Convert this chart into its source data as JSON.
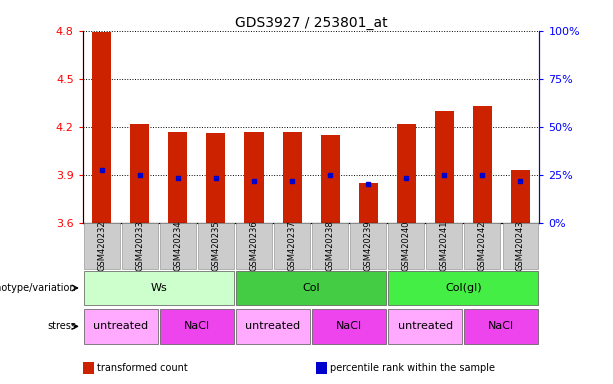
{
  "title": "GDS3927 / 253801_at",
  "samples": [
    "GSM420232",
    "GSM420233",
    "GSM420234",
    "GSM420235",
    "GSM420236",
    "GSM420237",
    "GSM420238",
    "GSM420239",
    "GSM420240",
    "GSM420241",
    "GSM420242",
    "GSM420243"
  ],
  "bar_tops": [
    4.79,
    4.22,
    4.17,
    4.16,
    4.17,
    4.17,
    4.15,
    3.85,
    4.22,
    4.3,
    4.33,
    3.93
  ],
  "bar_bottoms": [
    3.6,
    3.6,
    3.6,
    3.6,
    3.6,
    3.6,
    3.6,
    3.6,
    3.6,
    3.6,
    3.6,
    3.6
  ],
  "blue_dots": [
    3.93,
    3.9,
    3.88,
    3.88,
    3.86,
    3.86,
    3.9,
    3.84,
    3.88,
    3.9,
    3.9,
    3.86
  ],
  "ylim": [
    3.6,
    4.8
  ],
  "yticks": [
    3.6,
    3.9,
    4.2,
    4.5,
    4.8
  ],
  "right_yticks": [
    0,
    25,
    50,
    75,
    100
  ],
  "right_ytick_labels": [
    "0%",
    "25%",
    "50%",
    "75%",
    "100%"
  ],
  "bar_color": "#cc2200",
  "dot_color": "#0000cc",
  "genotype_groups": [
    {
      "label": "Ws",
      "start": 0,
      "end": 3,
      "color": "#ccffcc"
    },
    {
      "label": "Col",
      "start": 4,
      "end": 7,
      "color": "#44cc44"
    },
    {
      "label": "Col(gl)",
      "start": 8,
      "end": 11,
      "color": "#44ee44"
    }
  ],
  "stress_groups": [
    {
      "label": "untreated",
      "start": 0,
      "end": 1,
      "color": "#ffaaff"
    },
    {
      "label": "NaCl",
      "start": 2,
      "end": 3,
      "color": "#ee44ee"
    },
    {
      "label": "untreated",
      "start": 4,
      "end": 5,
      "color": "#ffaaff"
    },
    {
      "label": "NaCl",
      "start": 6,
      "end": 7,
      "color": "#ee44ee"
    },
    {
      "label": "untreated",
      "start": 8,
      "end": 9,
      "color": "#ffaaff"
    },
    {
      "label": "NaCl",
      "start": 10,
      "end": 11,
      "color": "#ee44ee"
    }
  ],
  "genotype_label": "genotype/variation",
  "stress_label": "stress",
  "legend_items": [
    {
      "color": "#cc2200",
      "label": "transformed count"
    },
    {
      "color": "#0000cc",
      "label": "percentile rank within the sample"
    }
  ],
  "title_fontsize": 10,
  "axis_fontsize": 8,
  "sample_fontsize": 6,
  "bar_width": 0.5,
  "sample_box_color": "#cccccc",
  "sample_box_edge": "#999999"
}
